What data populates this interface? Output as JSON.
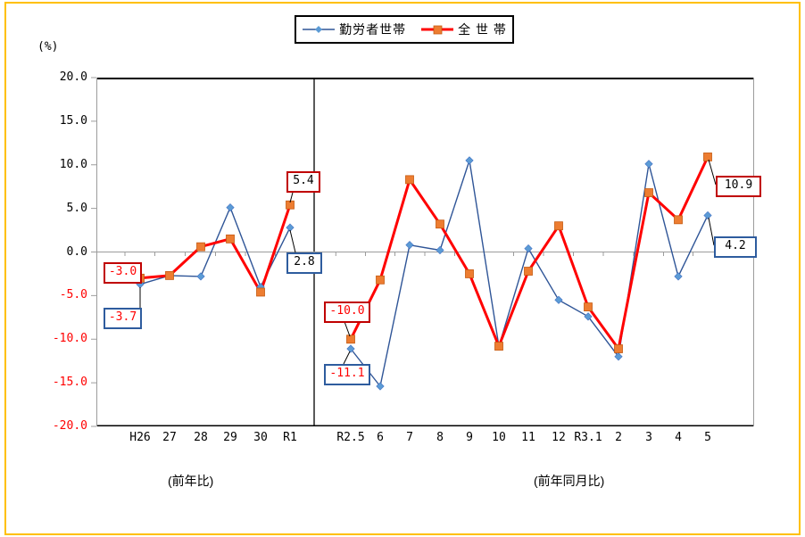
{
  "frame": {
    "border_color": "#FFC000"
  },
  "legend": {
    "items": [
      {
        "label": "勤労者世帯",
        "line_color": "#2F5597",
        "marker": "diamond",
        "marker_color": "#5B9BD5"
      },
      {
        "label": "全 世 帯",
        "line_color": "#FF0000",
        "marker": "square",
        "marker_color": "#ED7D31"
      }
    ]
  },
  "axis": {
    "unit_label": "(%)",
    "y_tick_labels": [
      "20.0",
      "15.0",
      "10.0",
      "5.0",
      "0.0",
      "-5.0",
      "-10.0",
      "-15.0",
      "-20.0"
    ],
    "negative_tick_color": "#FF0000"
  },
  "captions": {
    "left": "(前年比)",
    "right": "(前年同月比)"
  },
  "chart_data": {
    "type": "line",
    "title": "",
    "ylabel": "(%)",
    "ylim": [
      -20,
      20
    ],
    "ytick_step": 5,
    "grid": "zero-line-only",
    "legend_position": "top-center",
    "group_split_index": 6,
    "groups": [
      {
        "caption": "(前年比)",
        "categories": [
          "H26",
          "27",
          "28",
          "29",
          "30",
          "R1"
        ]
      },
      {
        "caption": "(前年同月比)",
        "categories": [
          "R2.5",
          "6",
          "7",
          "8",
          "9",
          "10",
          "11",
          "12",
          "R3.1",
          "2",
          "3",
          "4",
          "5"
        ]
      }
    ],
    "categories": [
      "H26",
      "27",
      "28",
      "29",
      "30",
      "R1",
      "R2.5",
      "6",
      "7",
      "8",
      "9",
      "10",
      "11",
      "12",
      "R3.1",
      "2",
      "3",
      "4",
      "5"
    ],
    "series": [
      {
        "name": "勤労者世帯",
        "color": "#2F5597",
        "marker": "diamond",
        "marker_color": "#5B9BD5",
        "values": [
          -3.7,
          -2.7,
          -2.8,
          5.1,
          -4.0,
          2.8,
          -11.1,
          -15.4,
          0.8,
          0.2,
          10.5,
          -10.8,
          0.4,
          -5.5,
          -7.4,
          -12.0,
          10.1,
          -2.8,
          4.2
        ]
      },
      {
        "name": "全 世 帯",
        "color": "#FF0000",
        "marker": "square",
        "marker_color": "#ED7D31",
        "values": [
          -3.0,
          -2.7,
          0.6,
          1.5,
          -4.6,
          5.4,
          -10.0,
          -3.2,
          8.3,
          3.2,
          -2.5,
          -10.8,
          -2.2,
          3.0,
          -6.3,
          -11.1,
          6.8,
          3.7,
          10.9
        ]
      }
    ],
    "annotations": [
      {
        "text": "-3.0",
        "series": 1,
        "point": 0,
        "border_color": "#C00000",
        "text_color": "#FF0000"
      },
      {
        "text": "-3.7",
        "series": 0,
        "point": 0,
        "border_color": "#2E5C9E",
        "text_color": "#FF0000"
      },
      {
        "text": "5.4",
        "series": 1,
        "point": 5,
        "border_color": "#C00000",
        "text_color": "#000000"
      },
      {
        "text": "2.8",
        "series": 0,
        "point": 5,
        "border_color": "#2E5C9E",
        "text_color": "#000000"
      },
      {
        "text": "-10.0",
        "series": 1,
        "point": 6,
        "border_color": "#C00000",
        "text_color": "#FF0000"
      },
      {
        "text": "-11.1",
        "series": 0,
        "point": 6,
        "border_color": "#2E5C9E",
        "text_color": "#FF0000"
      },
      {
        "text": "10.9",
        "series": 1,
        "point": 18,
        "border_color": "#C00000",
        "text_color": "#000000"
      },
      {
        "text": "4.2",
        "series": 0,
        "point": 18,
        "border_color": "#2E5C9E",
        "text_color": "#000000"
      }
    ]
  }
}
